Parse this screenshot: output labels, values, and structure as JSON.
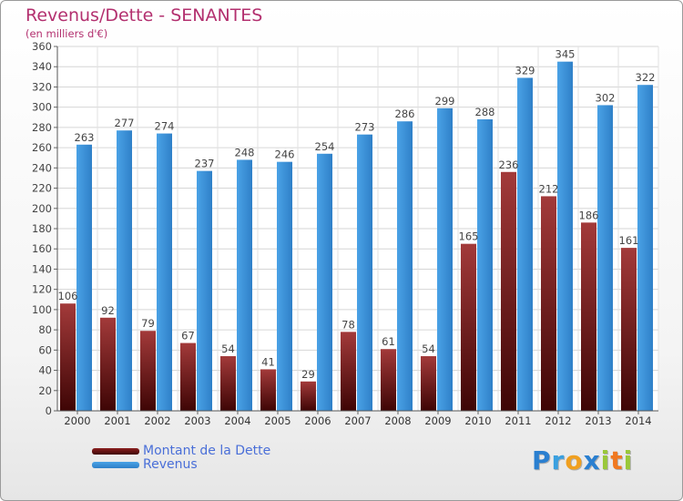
{
  "header": {
    "title": "Revenus/Dette - SENANTES",
    "subtitle": "(en milliers d'€)"
  },
  "legend": {
    "items": [
      {
        "label": "Montant de la Dette",
        "color": "#6b1010"
      },
      {
        "label": "Revenus",
        "color": "#3a8fd8"
      }
    ]
  },
  "logo": {
    "letters": [
      {
        "ch": "P",
        "color": "#2a7fd0"
      },
      {
        "ch": "r",
        "color": "#3aa0e0"
      },
      {
        "ch": "o",
        "color": "#f0a020"
      },
      {
        "ch": "x",
        "color": "#2a7fd0"
      },
      {
        "ch": "i",
        "color": "#9ac83a"
      },
      {
        "ch": "t",
        "color": "#f07820"
      },
      {
        "ch": "i",
        "color": "#9ac83a"
      }
    ]
  },
  "chart_data": {
    "type": "bar",
    "categories": [
      "2000",
      "2001",
      "2002",
      "2003",
      "2004",
      "2005",
      "2006",
      "2007",
      "2008",
      "2009",
      "2010",
      "2011",
      "2012",
      "2013",
      "2014"
    ],
    "series": [
      {
        "name": "Montant de la Dette",
        "color": "#6b1010",
        "values": [
          106,
          92,
          79,
          67,
          54,
          41,
          29,
          78,
          61,
          54,
          165,
          236,
          212,
          186,
          161
        ]
      },
      {
        "name": "Revenus",
        "color": "#3a8fd8",
        "values": [
          263,
          277,
          274,
          237,
          248,
          246,
          254,
          273,
          286,
          299,
          288,
          329,
          345,
          302,
          322
        ]
      }
    ],
    "ylim": [
      0,
      360
    ],
    "yticks": [
      0,
      20,
      40,
      60,
      80,
      100,
      120,
      140,
      160,
      180,
      200,
      220,
      240,
      260,
      280,
      300,
      320,
      340,
      360
    ],
    "grid": true,
    "legend_position": "bottom-left"
  }
}
